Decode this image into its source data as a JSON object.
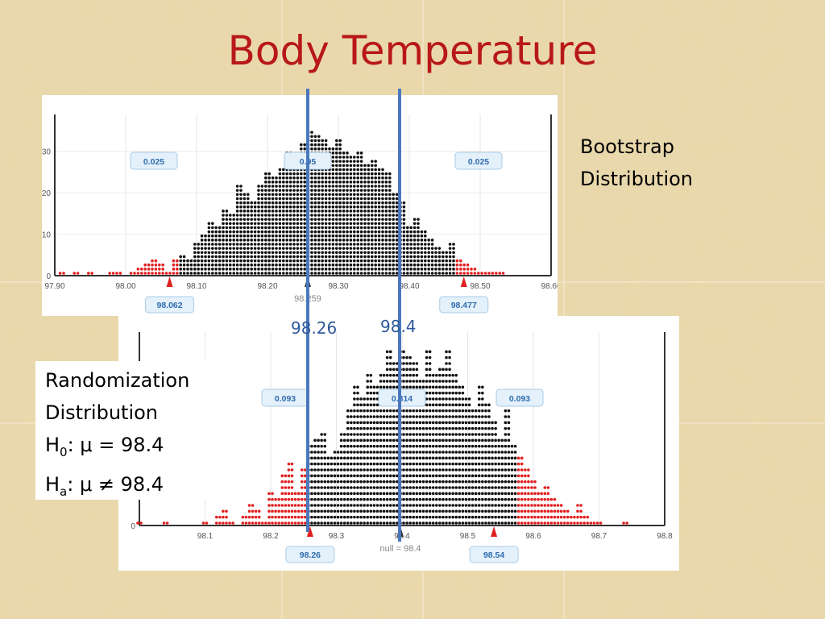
{
  "slide": {
    "title": "Body Temperature",
    "bootstrap_label": [
      "Bootstrap",
      "Distribution"
    ],
    "randomization_label": [
      "Randomization",
      "Distribution"
    ],
    "h0": {
      "sym": "H",
      "sub": "0",
      "text": ": μ = 98.4"
    },
    "ha": {
      "sym": "H",
      "sub": "a",
      "text": ": μ ≠ 98.4"
    },
    "line_labels": {
      "left": "98.26",
      "right": "98.4"
    }
  },
  "colors": {
    "dot": "#111111",
    "tail": "#e02020",
    "line": "#4a78bd",
    "title": "#b81818",
    "badge_fill": "#e4f1fb",
    "badge_text": "#2f6cae"
  },
  "chart_data": [
    {
      "type": "scatter",
      "title": "",
      "xlabel": "",
      "ylabel": "",
      "xlim": [
        97.9,
        98.6
      ],
      "ylim": [
        0,
        35
      ],
      "x_ticks": [
        "97.90",
        "98.00",
        "98.10",
        "98.20",
        "98.30",
        "98.40",
        "98.50",
        "98.60"
      ],
      "y_ticks": [
        "0",
        "10",
        "20",
        "30"
      ],
      "proportions": {
        "left": "0.025",
        "middle": "0.95",
        "right": "0.025"
      },
      "cutoffs": {
        "lower": "98.062",
        "upper": "98.477",
        "center": "98.259"
      },
      "bin_start": 97.91,
      "bin_width": 0.01,
      "counts": [
        1,
        0,
        1,
        0,
        1,
        0,
        0,
        1,
        1,
        0,
        1,
        2,
        3,
        4,
        3,
        1,
        4,
        5,
        4,
        8,
        10,
        13,
        12,
        16,
        15,
        22,
        20,
        18,
        22,
        25,
        24,
        26,
        30,
        28,
        32,
        35,
        34,
        33,
        31,
        33,
        30,
        29,
        30,
        27,
        28,
        26,
        25,
        20,
        18,
        12,
        14,
        11,
        9,
        7,
        6,
        8,
        4,
        3,
        2,
        1,
        1,
        1,
        1,
        0,
        0
      ],
      "tail_counts": [
        1,
        0,
        1,
        0,
        1,
        0,
        0,
        1,
        1,
        0,
        1,
        2,
        3,
        4,
        3,
        1,
        4,
        0,
        0,
        0,
        0,
        0,
        0,
        0,
        0,
        0,
        0,
        0,
        0,
        0,
        0,
        0,
        0,
        0,
        0,
        0,
        0,
        0,
        0,
        0,
        0,
        0,
        0,
        0,
        0,
        0,
        0,
        0,
        0,
        0,
        0,
        0,
        0,
        0,
        0,
        0,
        8,
        3,
        2,
        1,
        1,
        1,
        1,
        0,
        0
      ]
    },
    {
      "type": "scatter",
      "title": "",
      "xlabel": "",
      "ylabel": "",
      "xlim": [
        98.0,
        98.8
      ],
      "ylim": [
        0,
        30
      ],
      "x_ticks": [
        "98.1",
        "98.2",
        "98.3",
        "98.4",
        "98.5",
        "98.6",
        "98.7",
        "98.8"
      ],
      "y_ticks": [
        "0"
      ],
      "proportions": {
        "left": "0.093",
        "middle": "0.814",
        "right": "0.093"
      },
      "cutoffs": {
        "lower": "98.26",
        "upper": "98.54",
        "center": "null = 98.4"
      },
      "bin_start": 98.0,
      "bin_width": 0.01,
      "counts": [
        1,
        0,
        0,
        0,
        1,
        0,
        0,
        0,
        0,
        0,
        1,
        0,
        2,
        3,
        1,
        0,
        2,
        4,
        3,
        1,
        6,
        5,
        9,
        11,
        6,
        10,
        14,
        15,
        16,
        12,
        13,
        16,
        20,
        24,
        22,
        26,
        24,
        26,
        30,
        28,
        30,
        29,
        28,
        25,
        30,
        26,
        27,
        30,
        26,
        24,
        22,
        20,
        24,
        21,
        18,
        15,
        20,
        14,
        12,
        10,
        8,
        6,
        7,
        5,
        4,
        3,
        2,
        4,
        2,
        1,
        1,
        0,
        0,
        0,
        1,
        0,
        0,
        0,
        0,
        0
      ],
      "tail_counts": [
        1,
        0,
        0,
        0,
        1,
        0,
        0,
        0,
        0,
        0,
        1,
        0,
        2,
        3,
        1,
        0,
        2,
        4,
        3,
        1,
        6,
        5,
        9,
        11,
        6,
        10,
        0,
        0,
        0,
        0,
        0,
        0,
        0,
        0,
        0,
        0,
        0,
        0,
        0,
        0,
        0,
        0,
        0,
        0,
        0,
        0,
        0,
        0,
        0,
        0,
        0,
        0,
        0,
        0,
        0,
        0,
        0,
        0,
        12,
        10,
        8,
        6,
        7,
        5,
        4,
        3,
        2,
        4,
        2,
        1,
        1,
        0,
        0,
        0,
        1,
        0,
        0,
        0,
        0,
        0
      ]
    }
  ]
}
